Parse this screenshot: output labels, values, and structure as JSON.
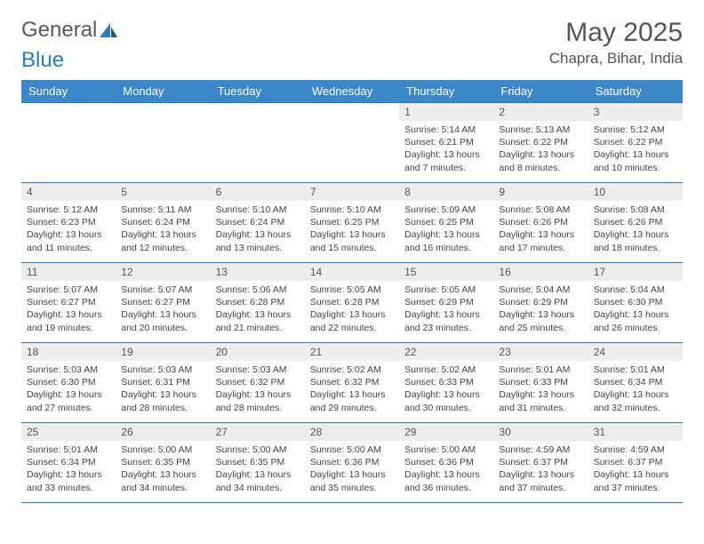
{
  "brand": {
    "part1": "General",
    "part2": "Blue"
  },
  "title": "May 2025",
  "location": "Chapra, Bihar, India",
  "days_of_week": [
    "Sunday",
    "Monday",
    "Tuesday",
    "Wednesday",
    "Thursday",
    "Friday",
    "Saturday"
  ],
  "colors": {
    "header_bg": "#3b87c8",
    "border": "#2b7bbf",
    "daynum_bg": "#ededed",
    "text": "#444444",
    "title_text": "#555555"
  },
  "first_weekday_index": 4,
  "days": [
    {
      "n": 1,
      "sunrise": "5:14 AM",
      "sunset": "6:21 PM",
      "daylight": "13 hours and 7 minutes."
    },
    {
      "n": 2,
      "sunrise": "5:13 AM",
      "sunset": "6:22 PM",
      "daylight": "13 hours and 8 minutes."
    },
    {
      "n": 3,
      "sunrise": "5:12 AM",
      "sunset": "6:22 PM",
      "daylight": "13 hours and 10 minutes."
    },
    {
      "n": 4,
      "sunrise": "5:12 AM",
      "sunset": "6:23 PM",
      "daylight": "13 hours and 11 minutes."
    },
    {
      "n": 5,
      "sunrise": "5:11 AM",
      "sunset": "6:24 PM",
      "daylight": "13 hours and 12 minutes."
    },
    {
      "n": 6,
      "sunrise": "5:10 AM",
      "sunset": "6:24 PM",
      "daylight": "13 hours and 13 minutes."
    },
    {
      "n": 7,
      "sunrise": "5:10 AM",
      "sunset": "6:25 PM",
      "daylight": "13 hours and 15 minutes."
    },
    {
      "n": 8,
      "sunrise": "5:09 AM",
      "sunset": "6:25 PM",
      "daylight": "13 hours and 16 minutes."
    },
    {
      "n": 9,
      "sunrise": "5:08 AM",
      "sunset": "6:26 PM",
      "daylight": "13 hours and 17 minutes."
    },
    {
      "n": 10,
      "sunrise": "5:08 AM",
      "sunset": "6:26 PM",
      "daylight": "13 hours and 18 minutes."
    },
    {
      "n": 11,
      "sunrise": "5:07 AM",
      "sunset": "6:27 PM",
      "daylight": "13 hours and 19 minutes."
    },
    {
      "n": 12,
      "sunrise": "5:07 AM",
      "sunset": "6:27 PM",
      "daylight": "13 hours and 20 minutes."
    },
    {
      "n": 13,
      "sunrise": "5:06 AM",
      "sunset": "6:28 PM",
      "daylight": "13 hours and 21 minutes."
    },
    {
      "n": 14,
      "sunrise": "5:05 AM",
      "sunset": "6:28 PM",
      "daylight": "13 hours and 22 minutes."
    },
    {
      "n": 15,
      "sunrise": "5:05 AM",
      "sunset": "6:29 PM",
      "daylight": "13 hours and 23 minutes."
    },
    {
      "n": 16,
      "sunrise": "5:04 AM",
      "sunset": "6:29 PM",
      "daylight": "13 hours and 25 minutes."
    },
    {
      "n": 17,
      "sunrise": "5:04 AM",
      "sunset": "6:30 PM",
      "daylight": "13 hours and 26 minutes."
    },
    {
      "n": 18,
      "sunrise": "5:03 AM",
      "sunset": "6:30 PM",
      "daylight": "13 hours and 27 minutes."
    },
    {
      "n": 19,
      "sunrise": "5:03 AM",
      "sunset": "6:31 PM",
      "daylight": "13 hours and 28 minutes."
    },
    {
      "n": 20,
      "sunrise": "5:03 AM",
      "sunset": "6:32 PM",
      "daylight": "13 hours and 28 minutes."
    },
    {
      "n": 21,
      "sunrise": "5:02 AM",
      "sunset": "6:32 PM",
      "daylight": "13 hours and 29 minutes."
    },
    {
      "n": 22,
      "sunrise": "5:02 AM",
      "sunset": "6:33 PM",
      "daylight": "13 hours and 30 minutes."
    },
    {
      "n": 23,
      "sunrise": "5:01 AM",
      "sunset": "6:33 PM",
      "daylight": "13 hours and 31 minutes."
    },
    {
      "n": 24,
      "sunrise": "5:01 AM",
      "sunset": "6:34 PM",
      "daylight": "13 hours and 32 minutes."
    },
    {
      "n": 25,
      "sunrise": "5:01 AM",
      "sunset": "6:34 PM",
      "daylight": "13 hours and 33 minutes."
    },
    {
      "n": 26,
      "sunrise": "5:00 AM",
      "sunset": "6:35 PM",
      "daylight": "13 hours and 34 minutes."
    },
    {
      "n": 27,
      "sunrise": "5:00 AM",
      "sunset": "6:35 PM",
      "daylight": "13 hours and 34 minutes."
    },
    {
      "n": 28,
      "sunrise": "5:00 AM",
      "sunset": "6:36 PM",
      "daylight": "13 hours and 35 minutes."
    },
    {
      "n": 29,
      "sunrise": "5:00 AM",
      "sunset": "6:36 PM",
      "daylight": "13 hours and 36 minutes."
    },
    {
      "n": 30,
      "sunrise": "4:59 AM",
      "sunset": "6:37 PM",
      "daylight": "13 hours and 37 minutes."
    },
    {
      "n": 31,
      "sunrise": "4:59 AM",
      "sunset": "6:37 PM",
      "daylight": "13 hours and 37 minutes."
    }
  ],
  "labels": {
    "sunrise": "Sunrise:",
    "sunset": "Sunset:",
    "daylight": "Daylight:"
  }
}
